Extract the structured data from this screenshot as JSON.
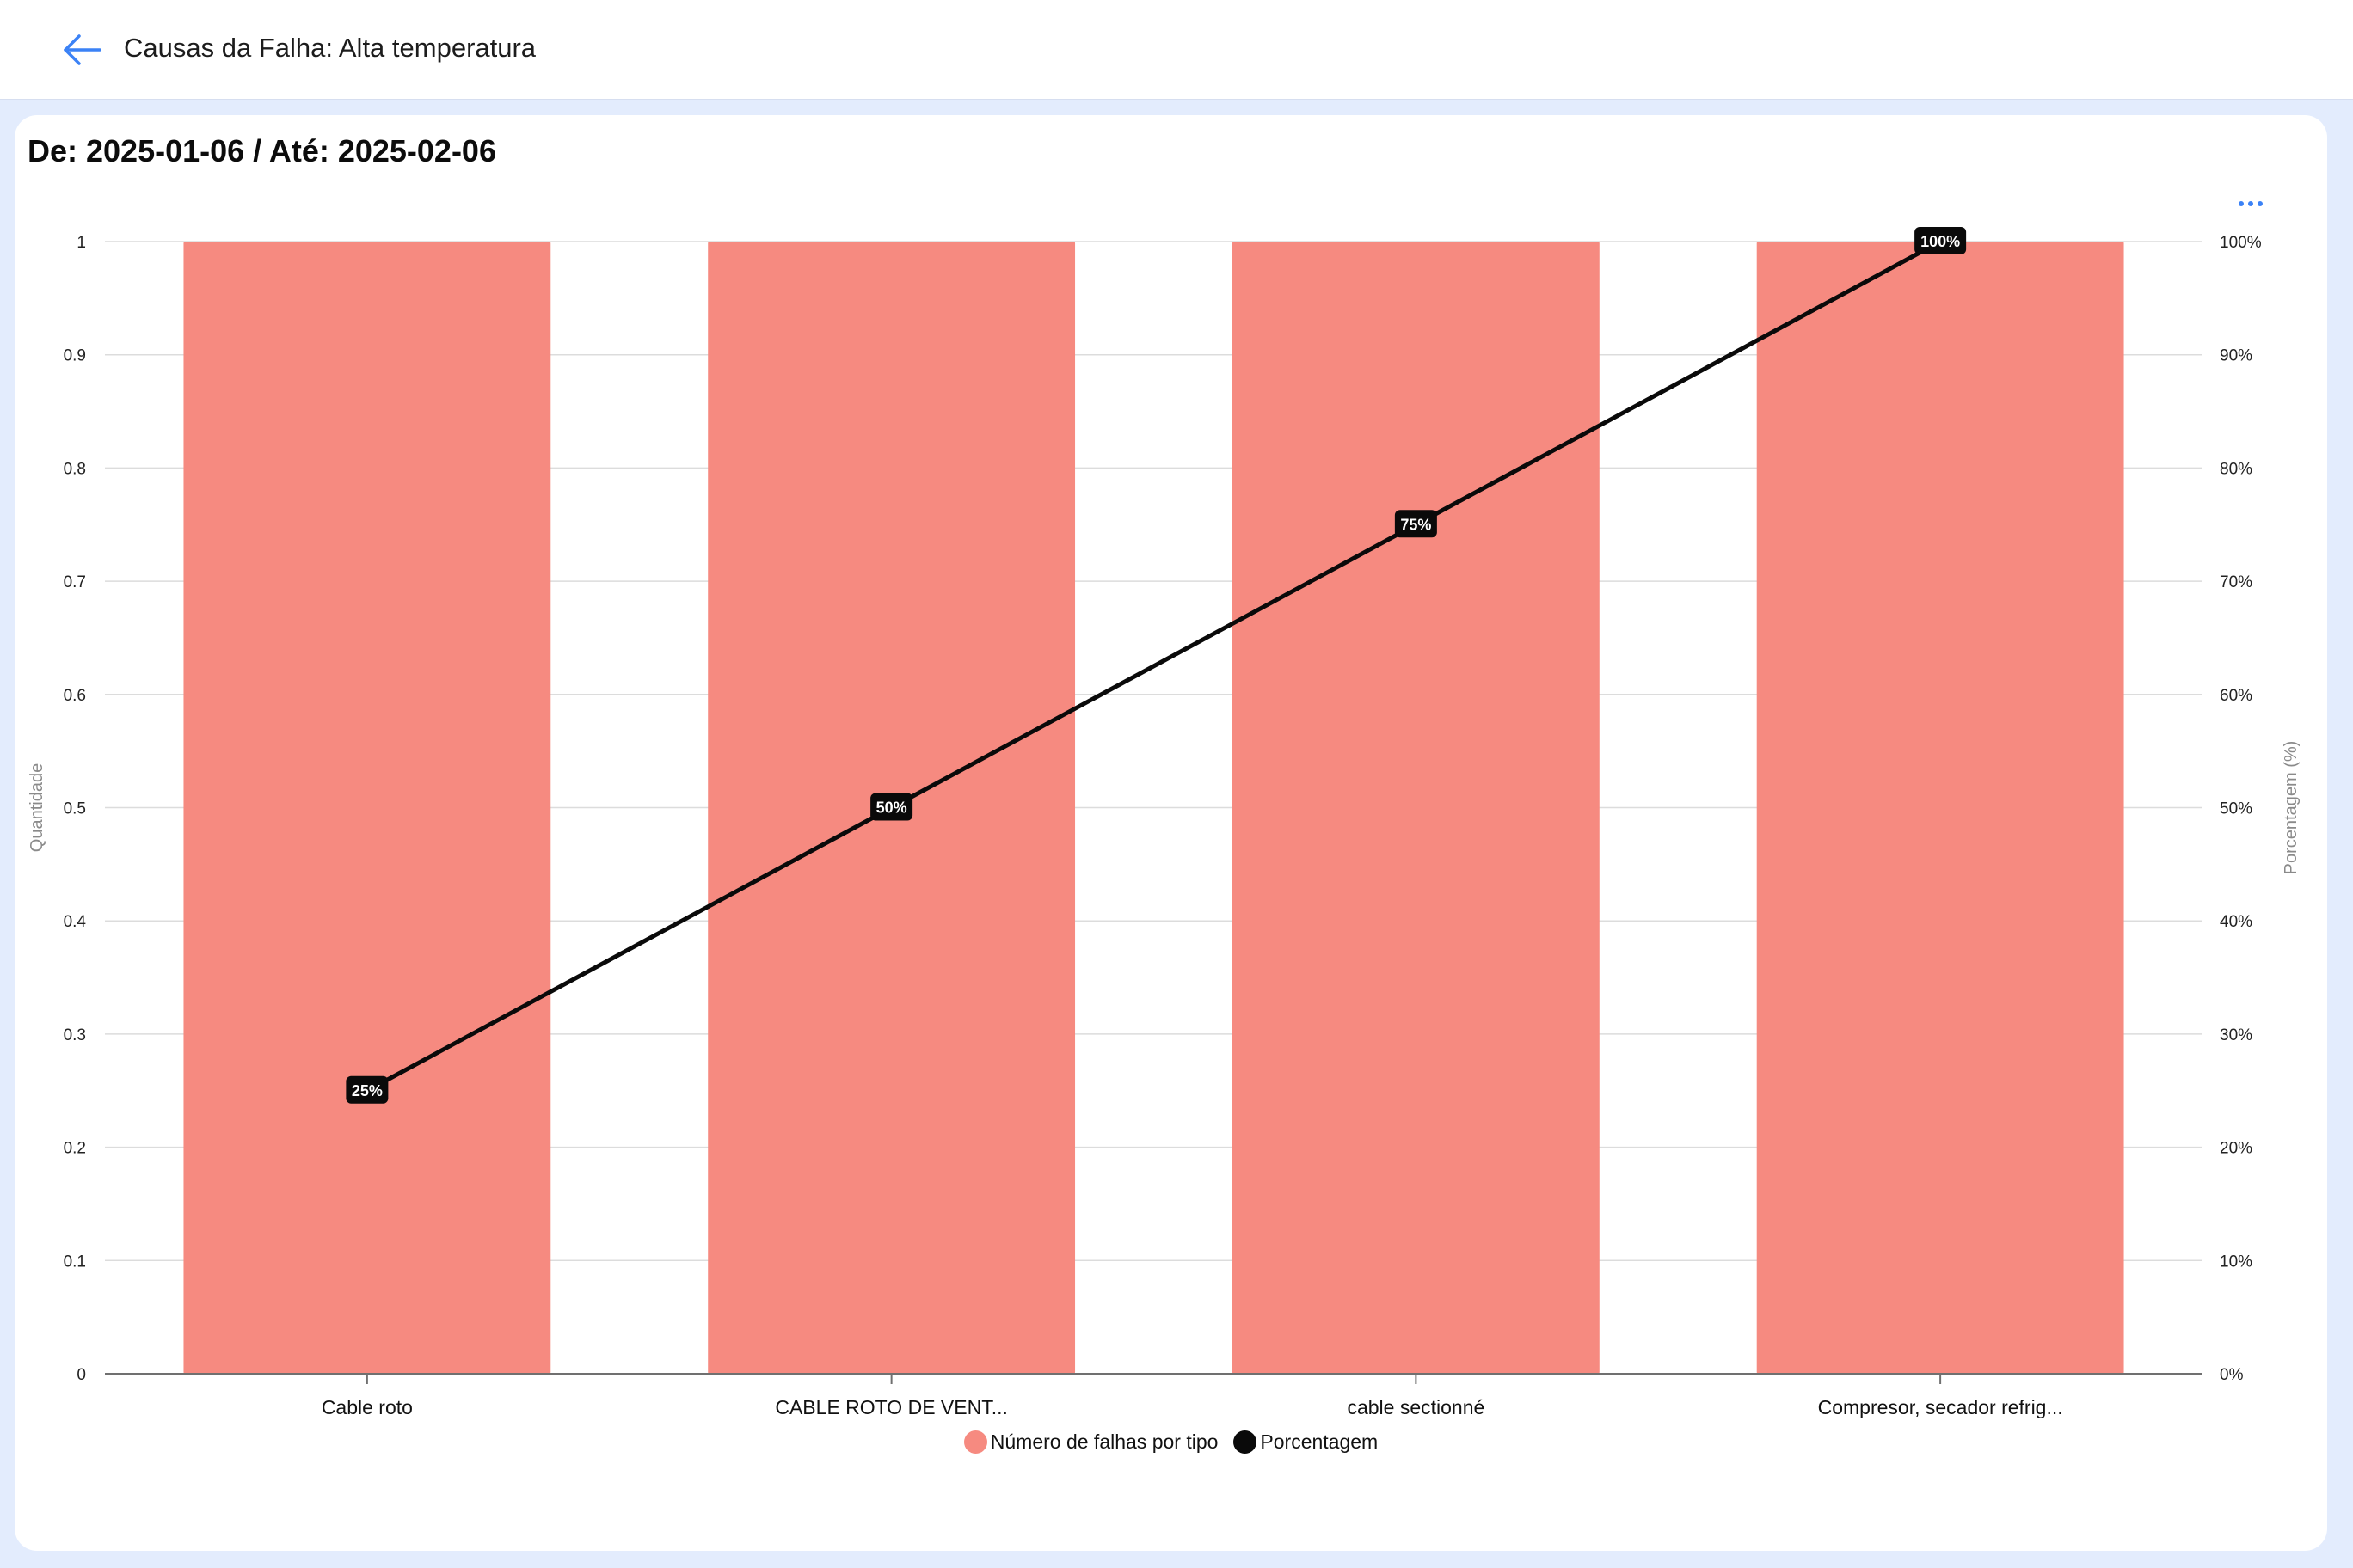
{
  "header": {
    "title": "Causas da Falha: Alta temperatura",
    "back_icon": "arrow-left-icon"
  },
  "card": {
    "date_range": "De: 2025-01-06 / Até: 2025-02-06",
    "more_icon": "more-horizontal-icon",
    "more_label": "..."
  },
  "colors": {
    "bar": "#f68a80",
    "line": "#0a0a0a",
    "accent": "#3b82f6",
    "grid": "#dcdcdc",
    "axis": "#707070",
    "background": "#e3ecfd"
  },
  "legend": {
    "bars_label": "Número de falhas por tipo",
    "line_label": "Porcentagem"
  },
  "chart_data": {
    "type": "bar",
    "categories": [
      "Cable roto",
      "CABLE ROTO DE VENT...",
      "cable sectionné",
      "Compresor, secador refrig..."
    ],
    "series": [
      {
        "name": "Número de falhas por tipo",
        "type": "bar",
        "axis": "left",
        "values": [
          1,
          1,
          1,
          1
        ]
      },
      {
        "name": "Porcentagem",
        "type": "line",
        "axis": "right",
        "values": [
          25,
          50,
          75,
          100
        ],
        "data_labels": [
          "25%",
          "50%",
          "75%",
          "100%"
        ]
      }
    ],
    "ylabel": "Quantidade",
    "y2label": "Porcentagem (%)",
    "ylim": [
      0,
      1
    ],
    "y_ticks": [
      "0",
      "0.1",
      "0.2",
      "0.3",
      "0.4",
      "0.5",
      "0.6",
      "0.7",
      "0.8",
      "0.9",
      "1"
    ],
    "y2lim": [
      0,
      100
    ],
    "y2_ticks": [
      "0%",
      "10%",
      "20%",
      "30%",
      "40%",
      "50%",
      "60%",
      "70%",
      "80%",
      "90%",
      "100%"
    ],
    "grid": true,
    "legend_position": "bottom-center"
  }
}
